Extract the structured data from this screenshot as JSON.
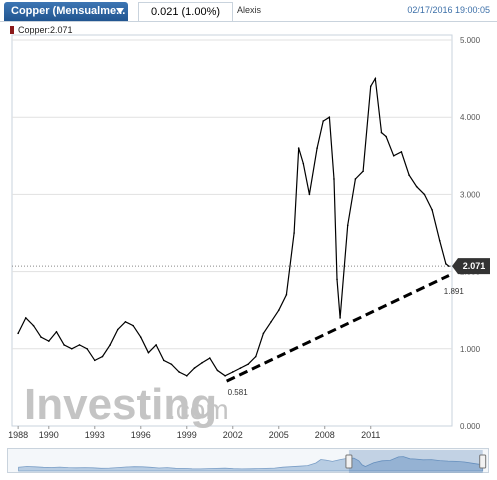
{
  "header": {
    "instrument_tab": "Copper (Mensualme...",
    "price_change": "0.021 (1.00%)",
    "author": "Alexis",
    "datetime": "02/17/2016 19:00:05"
  },
  "legend": {
    "label": "Copper:2.071",
    "color": "#8b1a1a"
  },
  "watermark": {
    "main": "Investing",
    "suffix": ".com"
  },
  "colors": {
    "accent": "#2b64a4",
    "line": "#000000",
    "grid": "#e1e1e1",
    "last_price_bg": "#333333"
  },
  "chart_data": {
    "type": "line",
    "title": "",
    "xlabel": "",
    "ylabel": "",
    "ylim": [
      0,
      5
    ],
    "xlim": [
      1987.6,
      2016.3
    ],
    "yticks": [
      "0.000",
      "1.000",
      "2.000",
      "3.000",
      "4.000",
      "5.000"
    ],
    "xticks": [
      1988,
      1990,
      1993,
      1996,
      1999,
      2002,
      2005,
      2008,
      2011
    ],
    "last_value": "2.071",
    "reference_line": 2.071,
    "grid": true,
    "series": [
      {
        "name": "Copper",
        "x": [
          1988.0,
          1988.5,
          1989.0,
          1989.5,
          1990.0,
          1990.5,
          1991.0,
          1991.5,
          1992.0,
          1992.5,
          1993.0,
          1993.5,
          1994.0,
          1994.5,
          1995.0,
          1995.5,
          1996.0,
          1996.5,
          1997.0,
          1997.5,
          1998.0,
          1998.5,
          1999.0,
          1999.5,
          2000.0,
          2000.5,
          2001.0,
          2001.5,
          2002.0,
          2002.5,
          2003.0,
          2003.5,
          2004.0,
          2004.5,
          2005.0,
          2005.5,
          2006.0,
          2006.3,
          2006.6,
          2007.0,
          2007.5,
          2007.9,
          2008.3,
          2008.6,
          2008.8,
          2009.0,
          2009.5,
          2010.0,
          2010.5,
          2011.0,
          2011.3,
          2011.7,
          2012.0,
          2012.5,
          2013.0,
          2013.5,
          2014.0,
          2014.5,
          2015.0,
          2015.5,
          2015.9,
          2016.1
        ],
        "values": [
          1.2,
          1.4,
          1.3,
          1.15,
          1.1,
          1.22,
          1.05,
          1.0,
          1.05,
          1.0,
          0.85,
          0.9,
          1.05,
          1.25,
          1.35,
          1.3,
          1.15,
          0.95,
          1.05,
          0.85,
          0.8,
          0.7,
          0.65,
          0.75,
          0.82,
          0.88,
          0.72,
          0.65,
          0.7,
          0.75,
          0.8,
          0.9,
          1.2,
          1.35,
          1.5,
          1.7,
          2.5,
          3.6,
          3.4,
          3.0,
          3.6,
          3.95,
          4.0,
          3.2,
          1.9,
          1.4,
          2.6,
          3.2,
          3.3,
          4.4,
          4.5,
          3.8,
          3.75,
          3.5,
          3.55,
          3.25,
          3.1,
          3.0,
          2.8,
          2.4,
          2.1,
          2.07
        ]
      }
    ],
    "annotations": [
      {
        "text": "0.581",
        "x": 2001.6,
        "y": 0.581
      },
      {
        "text": "1.891",
        "x": 2015.7,
        "y": 1.891
      }
    ],
    "trendline": {
      "style": "dashed",
      "from": [
        2001.6,
        0.581
      ],
      "to": [
        2016.1,
        1.95
      ]
    }
  }
}
